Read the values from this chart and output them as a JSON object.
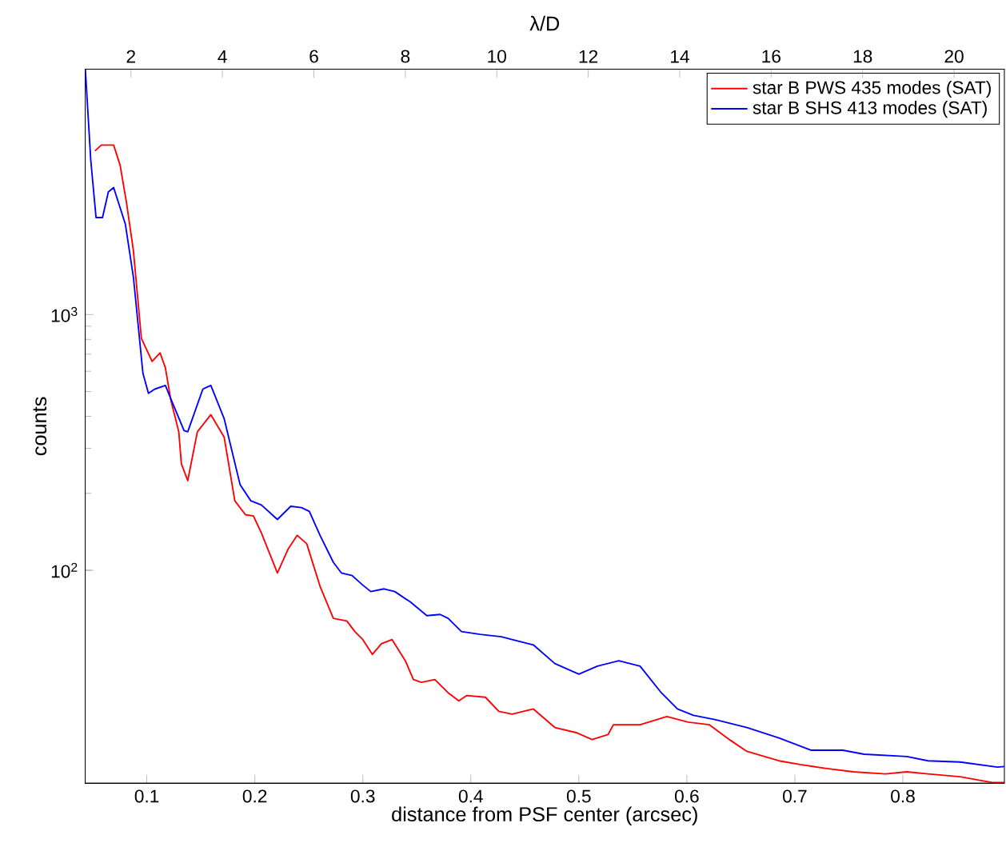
{
  "chart_data": {
    "type": "line",
    "xlabel": "distance from PSF center (arcsec)",
    "ylabel": "counts",
    "x2label": "λ/D",
    "xlim": [
      0.043,
      0.894
    ],
    "xticks": [
      0.1,
      0.2,
      0.3,
      0.4,
      0.5,
      0.6,
      0.7,
      0.8
    ],
    "x2lim": [
      1,
      21.1
    ],
    "x2ticks": [
      2,
      4,
      6,
      8,
      10,
      12,
      14,
      16,
      18,
      20
    ],
    "ylim": [
      14.7,
      9100
    ],
    "yticks": [
      {
        "value": 100,
        "label": "10$^{2}$"
      },
      {
        "value": 1000,
        "label": "10$^{3}$"
      }
    ],
    "log": "y",
    "legend": "top right",
    "marker": "none",
    "line_style": "solid",
    "series": [
      {
        "name": "star B PWS 435 modes (SAT)",
        "color": "#ff0000",
        "x": [
          0.052,
          0.0579,
          0.0693,
          0.0753,
          0.0812,
          0.0876,
          0.095,
          0.1049,
          0.1123,
          0.1172,
          0.1222,
          0.1296,
          0.132,
          0.1379,
          0.1468,
          0.1593,
          0.1716,
          0.1815,
          0.1913,
          0.1987,
          0.2061,
          0.2209,
          0.2308,
          0.2393,
          0.2481,
          0.2604,
          0.2727,
          0.2852,
          0.2926,
          0.3,
          0.3089,
          0.3172,
          0.3271,
          0.3394,
          0.3468,
          0.3542,
          0.3667,
          0.379,
          0.3889,
          0.3963,
          0.4135,
          0.4259,
          0.4382,
          0.4579,
          0.4778,
          0.4975,
          0.5123,
          0.5271,
          0.532,
          0.5567,
          0.5815,
          0.6012,
          0.6209,
          0.6407,
          0.6556,
          0.6852,
          0.7049,
          0.7296,
          0.7542,
          0.7839,
          0.8037,
          0.8234,
          0.853,
          0.8827,
          0.894
        ],
        "values": [
          4365,
          4598,
          4598,
          3835,
          2738,
          1778,
          806,
          656,
          708,
          619,
          464,
          348,
          261,
          224,
          348,
          406,
          332,
          187,
          165,
          163,
          140,
          97.7,
          121,
          137,
          127,
          86.6,
          64.9,
          63.4,
          57.6,
          53.6,
          46.9,
          51.6,
          53.6,
          44.3,
          37.4,
          36.5,
          37.4,
          33.2,
          30.9,
          32.4,
          31.9,
          28.1,
          27.4,
          28.7,
          24.3,
          23.2,
          21.8,
          22.8,
          24.9,
          24.9,
          26.8,
          25.5,
          24.9,
          21.6,
          19.6,
          18.0,
          17.4,
          16.8,
          16.3,
          16.0,
          16.3,
          16.0,
          15.6,
          14.8,
          14.8
        ]
      },
      {
        "name": "star B SHS 413 modes (SAT)",
        "color": "#0000ff",
        "x": [
          0.0431,
          0.0481,
          0.053,
          0.059,
          0.0644,
          0.0693,
          0.0801,
          0.0876,
          0.0964,
          0.1015,
          0.1074,
          0.1172,
          0.1246,
          0.1345,
          0.1379,
          0.1519,
          0.1593,
          0.1716,
          0.1864,
          0.1963,
          0.2061,
          0.2209,
          0.2333,
          0.2431,
          0.2505,
          0.2604,
          0.2727,
          0.2801,
          0.2901,
          0.3,
          0.3074,
          0.3197,
          0.3296,
          0.3444,
          0.3593,
          0.3716,
          0.379,
          0.3913,
          0.4086,
          0.4283,
          0.4382,
          0.4579,
          0.4778,
          0.5,
          0.5172,
          0.537,
          0.5567,
          0.5764,
          0.5913,
          0.6061,
          0.6259,
          0.6556,
          0.6852,
          0.7148,
          0.7444,
          0.7641,
          0.8037,
          0.8234,
          0.853,
          0.8876,
          0.894
        ],
        "values": [
          9095,
          4021,
          2395,
          2395,
          3016,
          3135,
          2261,
          1400,
          590,
          492,
          511,
          528,
          443,
          352,
          348,
          511,
          528,
          392,
          216,
          187,
          180,
          158,
          178,
          176,
          170,
          137,
          107.5,
          97.7,
          95.4,
          87.5,
          82.6,
          84.6,
          82.6,
          75.0,
          66.5,
          67.2,
          64.9,
          57.6,
          56.2,
          55.0,
          53.6,
          51.1,
          43.2,
          39.3,
          42.2,
          44.3,
          42.2,
          33.2,
          28.7,
          27.1,
          26.1,
          24.3,
          22.1,
          19.8,
          19.8,
          19.1,
          18.7,
          18.0,
          17.8,
          17.0,
          17.1
        ]
      }
    ]
  }
}
